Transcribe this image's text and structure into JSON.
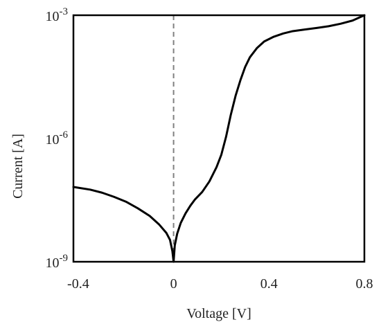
{
  "chart_data": {
    "type": "line",
    "title": "",
    "xlabel": "Voltage [V]",
    "ylabel": "Current [A]",
    "xlim": [
      -0.42,
      0.8
    ],
    "ylim": [
      1e-09,
      0.001
    ],
    "yscale": "log",
    "grid": false,
    "legend": "none",
    "x_ticks": [
      {
        "value": -0.4,
        "label": "-0.4"
      },
      {
        "value": 0,
        "label": "0"
      },
      {
        "value": 0.4,
        "label": "0.4"
      },
      {
        "value": 0.8,
        "label": "0.8"
      }
    ],
    "y_ticks": [
      {
        "value": 1e-09,
        "base": "10",
        "exp": "-9"
      },
      {
        "value": 1e-06,
        "base": "10",
        "exp": "-6"
      },
      {
        "value": 0.001,
        "base": "10",
        "exp": "-3"
      }
    ],
    "reference_line": {
      "x": 0,
      "style": "dashed",
      "color": "#808080"
    },
    "series": [
      {
        "color": "#000000",
        "x": [
          -0.42,
          -0.35,
          -0.3,
          -0.25,
          -0.2,
          -0.15,
          -0.1,
          -0.06,
          -0.03,
          -0.015,
          -0.005,
          0,
          0.005,
          0.015,
          0.03,
          0.05,
          0.07,
          0.09,
          0.12,
          0.15,
          0.18,
          0.2,
          0.22,
          0.24,
          0.26,
          0.28,
          0.3,
          0.32,
          0.35,
          0.38,
          0.42,
          0.46,
          0.5,
          0.55,
          0.6,
          0.65,
          0.7,
          0.75,
          0.8
        ],
        "y": [
          6.6e-08,
          5.7e-08,
          4.8e-08,
          3.8e-08,
          2.9e-08,
          2e-08,
          1.3e-08,
          8e-09,
          5e-09,
          3.4e-09,
          1.8e-09,
          1e-09,
          2.5e-09,
          4.8e-09,
          8.8e-09,
          1.5e-08,
          2.3e-08,
          3.3e-08,
          5e-08,
          9e-08,
          2e-07,
          4e-07,
          1.1e-06,
          3.8e-06,
          1.1e-05,
          2.6e-05,
          5.5e-05,
          9.5e-05,
          0.00016,
          0.00023,
          0.0003,
          0.00036,
          0.00041,
          0.00045,
          0.00049,
          0.00054,
          0.00062,
          0.00074,
          0.001
        ]
      }
    ]
  }
}
